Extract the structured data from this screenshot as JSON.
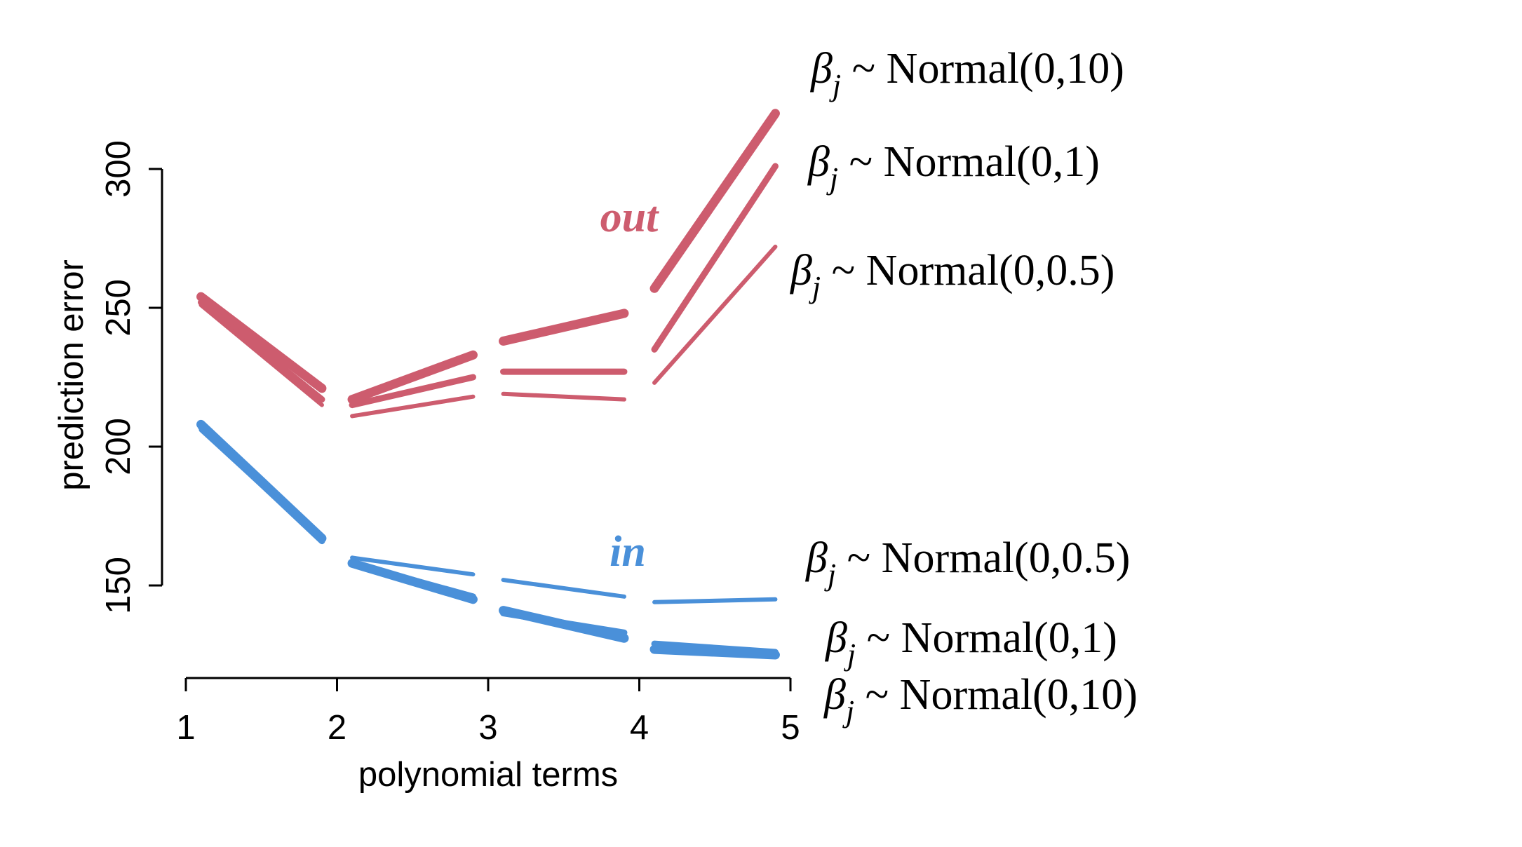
{
  "chart_data": {
    "type": "line",
    "xlabel": "polynomial terms",
    "ylabel": "prediction error",
    "x_ticks": [
      1,
      2,
      3,
      4,
      5
    ],
    "y_ticks": [
      150,
      200,
      250,
      300
    ],
    "xlim": [
      1,
      5
    ],
    "ylim": [
      117,
      300
    ],
    "grid": false,
    "colors": {
      "out": "#cd5c6e",
      "in": "#4a90d9"
    },
    "groups": [
      {
        "label": "out",
        "color": "#cd5c6e"
      },
      {
        "label": "in",
        "color": "#4a90d9"
      }
    ],
    "series": [
      {
        "group": "out",
        "prior": "Normal(0,10)",
        "weight": "thick",
        "segments": [
          [
            [
              1,
              254
            ],
            [
              2,
              221
            ]
          ],
          [
            [
              2,
              217
            ],
            [
              3,
              233
            ]
          ],
          [
            [
              3,
              238
            ],
            [
              4,
              248
            ]
          ],
          [
            [
              4,
              257
            ],
            [
              5,
              320
            ]
          ]
        ]
      },
      {
        "group": "out",
        "prior": "Normal(0,1)",
        "weight": "medium",
        "segments": [
          [
            [
              1,
              252
            ],
            [
              2,
              217
            ]
          ],
          [
            [
              2,
              215
            ],
            [
              3,
              225
            ]
          ],
          [
            [
              3,
              227
            ],
            [
              4,
              227
            ]
          ],
          [
            [
              4,
              235
            ],
            [
              5,
              301
            ]
          ]
        ]
      },
      {
        "group": "out",
        "prior": "Normal(0,0.5)",
        "weight": "thin",
        "segments": [
          [
            [
              1,
              251
            ],
            [
              2,
              215
            ]
          ],
          [
            [
              2,
              211
            ],
            [
              3,
              218
            ]
          ],
          [
            [
              3,
              219
            ],
            [
              4,
              217
            ]
          ],
          [
            [
              4,
              223
            ],
            [
              5,
              272
            ]
          ]
        ]
      },
      {
        "group": "in",
        "prior": "Normal(0,10)",
        "weight": "thick",
        "segments": [
          [
            [
              1,
              208
            ],
            [
              2,
              167
            ]
          ],
          [
            [
              2,
              158
            ],
            [
              3,
              145
            ]
          ],
          [
            [
              3,
              141
            ],
            [
              4,
              131
            ]
          ],
          [
            [
              4,
              127
            ],
            [
              5,
              125
            ]
          ]
        ]
      },
      {
        "group": "in",
        "prior": "Normal(0,1)",
        "weight": "medium",
        "segments": [
          [
            [
              1,
              207
            ],
            [
              2,
              166
            ]
          ],
          [
            [
              2,
              158
            ],
            [
              3,
              146
            ]
          ],
          [
            [
              3,
              140
            ],
            [
              4,
              133
            ]
          ],
          [
            [
              4,
              129
            ],
            [
              5,
              126
            ]
          ]
        ]
      },
      {
        "group": "in",
        "prior": "Normal(0,0.5)",
        "weight": "thin",
        "segments": [
          [
            [
              1,
              206
            ],
            [
              2,
              166
            ]
          ],
          [
            [
              2,
              160
            ],
            [
              3,
              154
            ]
          ],
          [
            [
              3,
              152
            ],
            [
              4,
              146
            ]
          ],
          [
            [
              4,
              144
            ],
            [
              5,
              145
            ]
          ]
        ]
      }
    ],
    "annotations": [
      {
        "id": "out_10",
        "beta": "β",
        "sub": "j",
        "text": " ~ Normal(0,10)"
      },
      {
        "id": "out_1",
        "beta": "β",
        "sub": "j",
        "text": " ~ Normal(0,1)"
      },
      {
        "id": "out_05",
        "beta": "β",
        "sub": "j",
        "text": " ~ Normal(0,0.5)"
      },
      {
        "id": "in_05",
        "beta": "β",
        "sub": "j",
        "text": " ~ Normal(0,0.5)"
      },
      {
        "id": "in_1",
        "beta": "β",
        "sub": "j",
        "text": " ~ Normal(0,1)"
      },
      {
        "id": "in_10",
        "beta": "β",
        "sub": "j",
        "text": " ~ Normal(0,10)"
      }
    ]
  }
}
